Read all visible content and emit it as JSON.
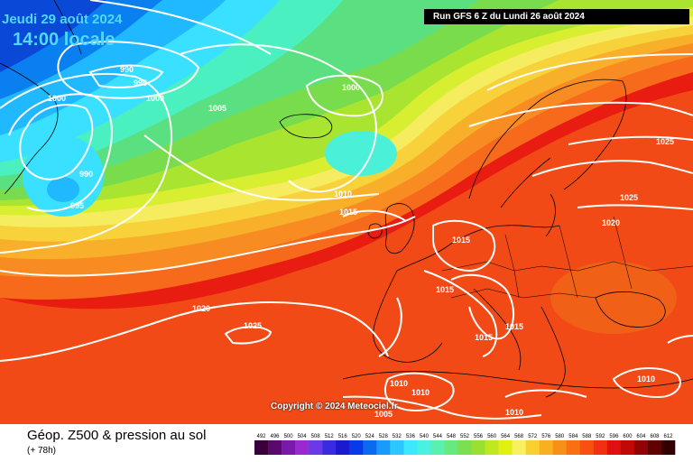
{
  "header": {
    "date": "Jeudi 29 août 2024",
    "time": "14:00 locale",
    "run": "Run GFS 6 Z du Lundi 26 août 2024"
  },
  "footer": {
    "title": "Géop. Z500 & pression au sol",
    "subtitle": "(+ 78h)",
    "copyright": "Copyright © 2024 Meteociel.fr"
  },
  "legend": {
    "values": [
      "492",
      "496",
      "500",
      "504",
      "508",
      "512",
      "516",
      "520",
      "524",
      "528",
      "532",
      "536",
      "540",
      "544",
      "548",
      "552",
      "556",
      "560",
      "564",
      "568",
      "572",
      "576",
      "580",
      "584",
      "588",
      "592",
      "596",
      "600",
      "604",
      "608",
      "612"
    ],
    "colors": [
      "#3a003a",
      "#5a0a6a",
      "#7a1aaa",
      "#9a2ad0",
      "#6a3ae8",
      "#3a2ae0",
      "#1a1ad0",
      "#0a3ae8",
      "#0a6af0",
      "#1a9aff",
      "#2ac8ff",
      "#3ae8ff",
      "#4af0e0",
      "#5af0b0",
      "#6ae880",
      "#7ae050",
      "#9ae030",
      "#c0e820",
      "#e0f010",
      "#f8f060",
      "#f8d030",
      "#f8b020",
      "#f89018",
      "#f87010",
      "#f85010",
      "#f03010",
      "#e01010",
      "#c00808",
      "#900404",
      "#600202",
      "#300000"
    ]
  },
  "isobars": [
    {
      "label": "990"
    },
    {
      "label": "995"
    },
    {
      "label": "1000"
    },
    {
      "label": "1000"
    },
    {
      "label": "1005"
    },
    {
      "label": "1000"
    },
    {
      "label": "990"
    },
    {
      "label": "995"
    },
    {
      "label": "1010"
    },
    {
      "label": "1015"
    },
    {
      "label": "1015"
    },
    {
      "label": "1015"
    },
    {
      "label": "1015"
    },
    {
      "label": "1015"
    },
    {
      "label": "1020"
    },
    {
      "label": "1025"
    },
    {
      "label": "1020"
    },
    {
      "label": "1025"
    },
    {
      "label": "1025"
    },
    {
      "label": "1010"
    },
    {
      "label": "1010"
    },
    {
      "label": "1005"
    },
    {
      "label": "1010"
    },
    {
      "label": "1010"
    }
  ]
}
